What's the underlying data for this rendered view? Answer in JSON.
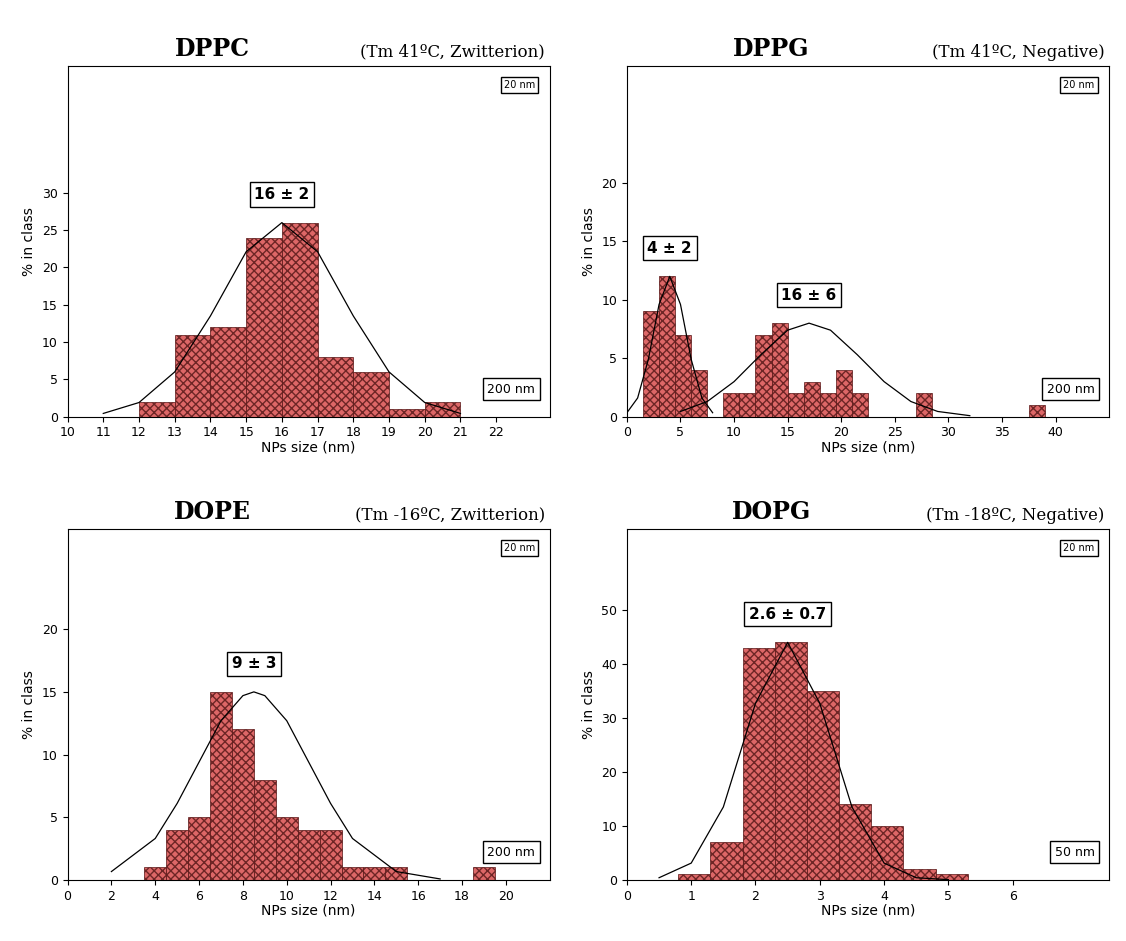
{
  "chart_data": [
    {
      "type": "histogram",
      "title": "DPPC",
      "subtitle": "(Tm 41ºC, Zwitterion)",
      "x_label": "NPs size (nm)",
      "y_label": "% in class",
      "bins": [
        12,
        13,
        14,
        15,
        16,
        17,
        18,
        19,
        20,
        21
      ],
      "counts": [
        2,
        11,
        12,
        24,
        26,
        8,
        6,
        1,
        2
      ],
      "color": "#d84c4c",
      "xlim": [
        10,
        23.5
      ],
      "xticks": [
        10,
        11,
        12,
        13,
        14,
        15,
        16,
        17,
        18,
        19,
        20,
        21,
        22
      ],
      "ylim": [
        0,
        47
      ],
      "yticks": [
        0,
        5,
        10,
        15,
        20,
        25,
        30
      ],
      "fits": [
        {
          "label": "16 ± 2",
          "x": [
            11,
            12,
            13,
            14,
            15,
            16,
            17,
            18,
            19,
            20,
            21
          ],
          "y": [
            0.44,
            1.9,
            6.0,
            13.5,
            22.1,
            26,
            22.1,
            13.5,
            6.0,
            1.9,
            0.44
          ]
        }
      ],
      "scale_bar": "200 nm",
      "inset_scale_bar": "20 nm"
    },
    {
      "type": "histogram",
      "title": "DPPG",
      "subtitle": "(Tm 41ºC, Negative)",
      "x_label": "NPs size (nm)",
      "y_label": "% in class",
      "bins": [
        1.5,
        3,
        4.5,
        6,
        7.5,
        9,
        10.5,
        12,
        13.5,
        15,
        16.5,
        18,
        19.5,
        21,
        22.5,
        24,
        25.5,
        27,
        28.5,
        30,
        31.5,
        33,
        34.5,
        36,
        37.5,
        39
      ],
      "counts": [
        9,
        12,
        7,
        4,
        0,
        2,
        2,
        7,
        8,
        2,
        3,
        2,
        4,
        2,
        0,
        0,
        0,
        2,
        0,
        0,
        0,
        0,
        0,
        0,
        1
      ],
      "color": "#d84c4c",
      "xlim": [
        0,
        45
      ],
      "xticks": [
        0,
        5,
        10,
        15,
        20,
        25,
        30,
        35,
        40
      ],
      "ylim": [
        0,
        30
      ],
      "yticks": [
        0,
        5,
        10,
        15,
        20
      ],
      "fits": [
        {
          "label": "4 ± 2",
          "x": [
            0,
            1,
            2,
            3,
            4,
            5,
            6,
            7,
            8
          ],
          "y": [
            0.34,
            1.6,
            4.9,
            9.6,
            12,
            9.6,
            4.9,
            1.6,
            0.34
          ]
        },
        {
          "label": "16 ± 6",
          "x": [
            5,
            7.5,
            10,
            12.5,
            15,
            17,
            19,
            21.5,
            24,
            26.5,
            29,
            32
          ],
          "y": [
            0.45,
            1.3,
            3.0,
            5.3,
            7.4,
            8,
            7.4,
            5.3,
            3.0,
            1.3,
            0.45,
            0.09
          ]
        }
      ],
      "scale_bar": "200 nm",
      "inset_scale_bar": "20 nm"
    },
    {
      "type": "histogram",
      "title": "DOPE",
      "subtitle": "(Tm -16ºC, Zwitterion)",
      "x_label": "NPs size (nm)",
      "y_label": "% in class",
      "bins": [
        3.5,
        4.5,
        5.5,
        6.5,
        7.5,
        8.5,
        9.5,
        10.5,
        11.5,
        12.5,
        13.5,
        14.5,
        15.5,
        16.5,
        17.5,
        18.5,
        19.5
      ],
      "counts": [
        1,
        4,
        5,
        15,
        12,
        8,
        5,
        4,
        4,
        1,
        1,
        1,
        0,
        0,
        0,
        1
      ],
      "color": "#d84c4c",
      "xlim": [
        0,
        22
      ],
      "xticks": [
        0,
        2,
        4,
        6,
        8,
        10,
        12,
        14,
        16,
        18,
        20
      ],
      "ylim": [
        0,
        28
      ],
      "yticks": [
        0,
        5,
        10,
        15,
        20
      ],
      "fits": [
        {
          "label": "9 ± 3",
          "x": [
            2,
            4,
            5,
            6,
            7,
            8,
            8.5,
            9,
            10,
            11,
            12,
            13,
            15,
            17
          ],
          "y": [
            0.66,
            3.3,
            6.1,
            9.4,
            12.7,
            14.7,
            15,
            14.7,
            12.7,
            9.4,
            6.1,
            3.3,
            0.66,
            0.07
          ]
        }
      ],
      "scale_bar": "200 nm",
      "inset_scale_bar": "20 nm"
    },
    {
      "type": "histogram",
      "title": "DOPG",
      "subtitle": "(Tm -18ºC, Negative)",
      "x_label": "NPs size (nm)",
      "y_label": "% in class",
      "bins": [
        0.8,
        1.3,
        1.8,
        2.3,
        2.8,
        3.3,
        3.8,
        4.3,
        4.8,
        5.3
      ],
      "counts": [
        1,
        7,
        43,
        44,
        35,
        14,
        10,
        2,
        1
      ],
      "color": "#d84c4c",
      "xlim": [
        0,
        7.5
      ],
      "xticks": [
        0,
        1,
        2,
        3,
        4,
        5,
        6
      ],
      "ylim": [
        0,
        65
      ],
      "yticks": [
        0,
        10,
        20,
        30,
        40,
        50
      ],
      "fits": [
        {
          "label": "2.6 ± 0.7",
          "x": [
            0.5,
            1,
            1.5,
            2,
            2.5,
            3,
            3.5,
            4,
            4.5,
            5
          ],
          "y": [
            0.39,
            3.1,
            13.5,
            32.7,
            44,
            32.7,
            13.5,
            3.1,
            0.39,
            0.03
          ]
        }
      ],
      "scale_bar": "50 nm",
      "inset_scale_bar": "20 nm"
    }
  ]
}
